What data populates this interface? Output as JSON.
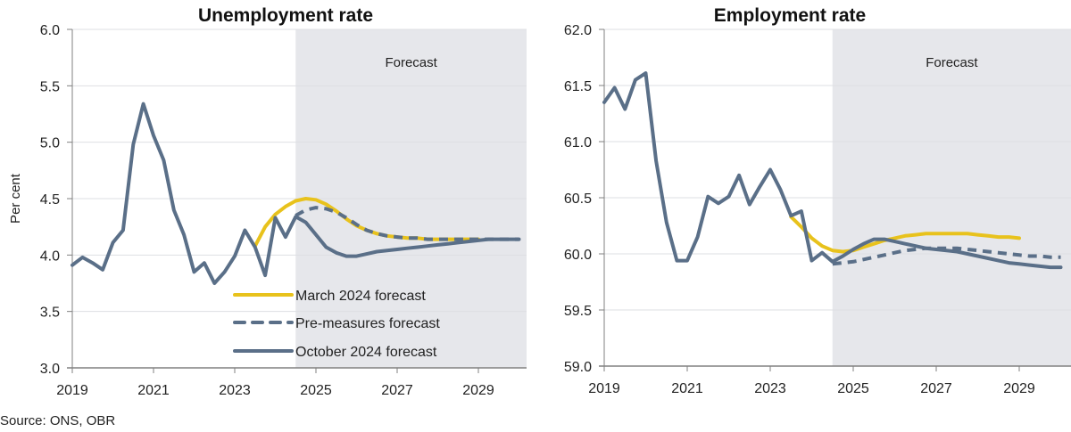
{
  "source": "Source: ONS, OBR",
  "chart_data": [
    {
      "type": "line",
      "title": "Unemployment rate",
      "xlabel": "",
      "ylabel": "Per cent",
      "ylim": [
        3.0,
        6.0
      ],
      "xlim": [
        2019.0,
        2030.25
      ],
      "yticks": [
        "3.0",
        "3.5",
        "4.0",
        "4.5",
        "5.0",
        "5.5",
        "6.0"
      ],
      "ytick_values": [
        3.0,
        3.5,
        4.0,
        4.5,
        5.0,
        5.5,
        6.0
      ],
      "xticks": [
        "2019",
        "2021",
        "2023",
        "2025",
        "2027",
        "2029"
      ],
      "xtick_values": [
        2019,
        2021,
        2023,
        2025,
        2027,
        2029
      ],
      "grid": true,
      "forecast_start": 2024.5,
      "forecast_label": "Forecast",
      "legend_position": "bottom-center",
      "series": [
        {
          "name": "March 2024 forecast",
          "style": "solid",
          "color": "#E8C21C",
          "x": [
            2023.5,
            2023.75,
            2024.0,
            2024.25,
            2024.5,
            2024.75,
            2025.0,
            2025.25,
            2025.5,
            2025.75,
            2026.0,
            2026.25,
            2026.5,
            2026.75,
            2027.0,
            2027.25,
            2027.5,
            2027.75,
            2028.0,
            2028.25,
            2028.5,
            2028.75,
            2029.0
          ],
          "values": [
            4.08,
            4.25,
            4.36,
            4.43,
            4.48,
            4.5,
            4.49,
            4.45,
            4.39,
            4.32,
            4.26,
            4.22,
            4.19,
            4.17,
            4.16,
            4.15,
            4.15,
            4.14,
            4.14,
            4.14,
            4.14,
            4.14,
            4.14
          ]
        },
        {
          "name": "Pre-measures forecast",
          "style": "dashed",
          "color": "#5A6F88",
          "x": [
            2024.5,
            2024.75,
            2025.0,
            2025.25,
            2025.5,
            2025.75,
            2026.0,
            2026.25,
            2026.5,
            2026.75,
            2027.0,
            2027.25,
            2027.5,
            2027.75,
            2028.0,
            2028.25,
            2028.5,
            2028.75,
            2029.0,
            2029.25,
            2029.5,
            2029.75,
            2030.0
          ],
          "values": [
            4.35,
            4.4,
            4.42,
            4.41,
            4.38,
            4.33,
            4.27,
            4.22,
            4.19,
            4.17,
            4.16,
            4.15,
            4.15,
            4.14,
            4.14,
            4.14,
            4.14,
            4.14,
            4.14,
            4.14,
            4.14,
            4.14,
            4.14
          ]
        },
        {
          "name": "October 2024 forecast",
          "style": "solid",
          "color": "#5A6F88",
          "x": [
            2019.0,
            2019.25,
            2019.5,
            2019.75,
            2020.0,
            2020.25,
            2020.5,
            2020.75,
            2021.0,
            2021.25,
            2021.5,
            2021.75,
            2022.0,
            2022.25,
            2022.5,
            2022.75,
            2023.0,
            2023.25,
            2023.5,
            2023.75,
            2024.0,
            2024.25,
            2024.5,
            2024.75,
            2025.0,
            2025.25,
            2025.5,
            2025.75,
            2026.0,
            2026.25,
            2026.5,
            2026.75,
            2027.0,
            2027.25,
            2027.5,
            2027.75,
            2028.0,
            2028.25,
            2028.5,
            2028.75,
            2029.0,
            2029.25,
            2029.5,
            2029.75,
            2030.0
          ],
          "values": [
            3.91,
            3.98,
            3.93,
            3.87,
            4.11,
            4.22,
            4.98,
            5.34,
            5.06,
            4.84,
            4.4,
            4.18,
            3.85,
            3.93,
            3.75,
            3.85,
            3.99,
            4.22,
            4.07,
            3.82,
            4.33,
            4.16,
            4.34,
            4.29,
            4.18,
            4.07,
            4.02,
            3.99,
            3.99,
            4.01,
            4.03,
            4.04,
            4.05,
            4.06,
            4.07,
            4.08,
            4.09,
            4.1,
            4.11,
            4.12,
            4.13,
            4.14,
            4.14,
            4.14,
            4.14
          ]
        }
      ]
    },
    {
      "type": "line",
      "title": "Employment rate",
      "xlabel": "",
      "ylabel": "",
      "ylim": [
        59.0,
        62.0
      ],
      "xlim": [
        2019.0,
        2030.25
      ],
      "yticks": [
        "59.0",
        "59.5",
        "60.0",
        "60.5",
        "61.0",
        "61.5",
        "62.0"
      ],
      "ytick_values": [
        59.0,
        59.5,
        60.0,
        60.5,
        61.0,
        61.5,
        62.0
      ],
      "xticks": [
        "2019",
        "2021",
        "2023",
        "2025",
        "2027",
        "2029"
      ],
      "xtick_values": [
        2019,
        2021,
        2023,
        2025,
        2027,
        2029
      ],
      "grid": true,
      "forecast_start": 2024.5,
      "forecast_label": "Forecast",
      "series": [
        {
          "name": "March 2024 forecast",
          "style": "solid",
          "color": "#E8C21C",
          "x": [
            2023.5,
            2023.75,
            2024.0,
            2024.25,
            2024.5,
            2024.75,
            2025.0,
            2025.25,
            2025.5,
            2025.75,
            2026.0,
            2026.25,
            2026.5,
            2026.75,
            2027.0,
            2027.25,
            2027.5,
            2027.75,
            2028.0,
            2028.25,
            2028.5,
            2028.75,
            2029.0
          ],
          "values": [
            60.33,
            60.24,
            60.14,
            60.07,
            60.03,
            60.02,
            60.03,
            60.06,
            60.09,
            60.12,
            60.14,
            60.16,
            60.17,
            60.18,
            60.18,
            60.18,
            60.18,
            60.18,
            60.17,
            60.16,
            60.15,
            60.15,
            60.14
          ]
        },
        {
          "name": "Pre-measures forecast",
          "style": "dashed",
          "color": "#5A6F88",
          "x": [
            2024.5,
            2024.75,
            2025.0,
            2025.25,
            2025.5,
            2025.75,
            2026.0,
            2026.25,
            2026.5,
            2026.75,
            2027.0,
            2027.25,
            2027.5,
            2027.75,
            2028.0,
            2028.25,
            2028.5,
            2028.75,
            2029.0,
            2029.25,
            2029.5,
            2029.75,
            2030.0
          ],
          "values": [
            59.91,
            59.92,
            59.93,
            59.95,
            59.97,
            59.99,
            60.01,
            60.03,
            60.04,
            60.05,
            60.05,
            60.05,
            60.05,
            60.04,
            60.03,
            60.02,
            60.01,
            60.0,
            59.99,
            59.98,
            59.98,
            59.97,
            59.97
          ]
        },
        {
          "name": "October 2024 forecast",
          "style": "solid",
          "color": "#5A6F88",
          "x": [
            2019.0,
            2019.25,
            2019.5,
            2019.75,
            2020.0,
            2020.25,
            2020.5,
            2020.75,
            2021.0,
            2021.25,
            2021.5,
            2021.75,
            2022.0,
            2022.25,
            2022.5,
            2022.75,
            2023.0,
            2023.25,
            2023.5,
            2023.75,
            2024.0,
            2024.25,
            2024.5,
            2024.75,
            2025.0,
            2025.25,
            2025.5,
            2025.75,
            2026.0,
            2026.25,
            2026.5,
            2026.75,
            2027.0,
            2027.25,
            2027.5,
            2027.75,
            2028.0,
            2028.25,
            2028.5,
            2028.75,
            2029.0,
            2029.25,
            2029.5,
            2029.75,
            2030.0
          ],
          "values": [
            61.35,
            61.48,
            61.29,
            61.55,
            61.61,
            60.83,
            60.28,
            59.94,
            59.94,
            60.15,
            60.51,
            60.45,
            60.51,
            60.7,
            60.44,
            60.6,
            60.75,
            60.57,
            60.34,
            60.38,
            59.94,
            60.01,
            59.93,
            59.98,
            60.04,
            60.09,
            60.13,
            60.13,
            60.11,
            60.09,
            60.07,
            60.05,
            60.04,
            60.03,
            60.02,
            60.0,
            59.98,
            59.96,
            59.94,
            59.92,
            59.91,
            59.9,
            59.89,
            59.88,
            59.88
          ]
        }
      ]
    }
  ]
}
